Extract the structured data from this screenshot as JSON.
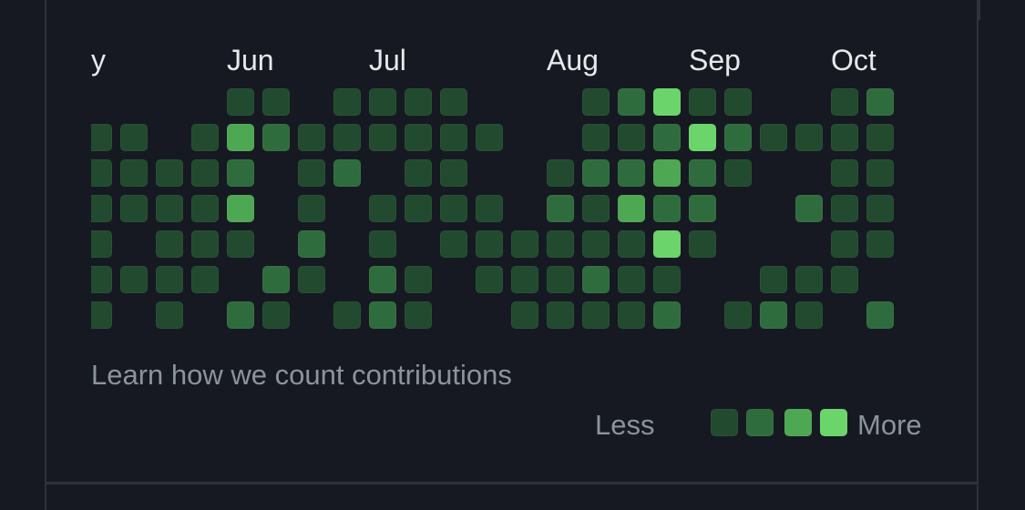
{
  "colors": {
    "background": "#161921",
    "border": "#2e323a",
    "levels": [
      "#161921",
      "#214a2f",
      "#2f6c3d",
      "#4ea752",
      "#6bd46a"
    ]
  },
  "months": [
    "y",
    "Jun",
    "Jul",
    "Aug",
    "Sep",
    "Oct"
  ],
  "link_text": "Learn how we count contributions",
  "legend": {
    "less": "Less",
    "more": "More"
  },
  "contributions": [
    [
      0,
      1,
      1,
      1,
      1,
      1,
      1
    ],
    [
      0,
      1,
      1,
      1,
      0,
      1,
      0
    ],
    [
      0,
      0,
      1,
      1,
      1,
      1,
      1
    ],
    [
      0,
      1,
      1,
      1,
      1,
      1,
      0
    ],
    [
      1,
      3,
      2,
      3,
      1,
      0,
      2
    ],
    [
      1,
      2,
      0,
      0,
      0,
      2,
      1
    ],
    [
      0,
      1,
      1,
      1,
      2,
      1,
      0
    ],
    [
      1,
      1,
      2,
      0,
      0,
      0,
      1
    ],
    [
      1,
      1,
      0,
      1,
      1,
      2,
      2
    ],
    [
      1,
      1,
      1,
      1,
      0,
      1,
      1
    ],
    [
      1,
      1,
      1,
      1,
      1,
      0,
      0
    ],
    [
      0,
      1,
      0,
      1,
      1,
      1,
      0
    ],
    [
      0,
      0,
      0,
      0,
      1,
      1,
      1
    ],
    [
      0,
      0,
      1,
      2,
      1,
      1,
      1
    ],
    [
      1,
      1,
      2,
      1,
      1,
      2,
      1
    ],
    [
      2,
      1,
      2,
      3,
      1,
      1,
      1
    ],
    [
      4,
      2,
      3,
      2,
      4,
      1,
      2
    ],
    [
      1,
      4,
      2,
      2,
      1,
      0,
      0
    ],
    [
      1,
      2,
      1,
      0,
      0,
      0,
      1
    ],
    [
      0,
      1,
      0,
      0,
      0,
      1,
      2
    ],
    [
      0,
      1,
      0,
      2,
      0,
      1,
      1
    ],
    [
      1,
      1,
      1,
      1,
      1,
      1,
      0
    ],
    [
      2,
      1,
      1,
      1,
      1,
      0,
      2
    ]
  ]
}
